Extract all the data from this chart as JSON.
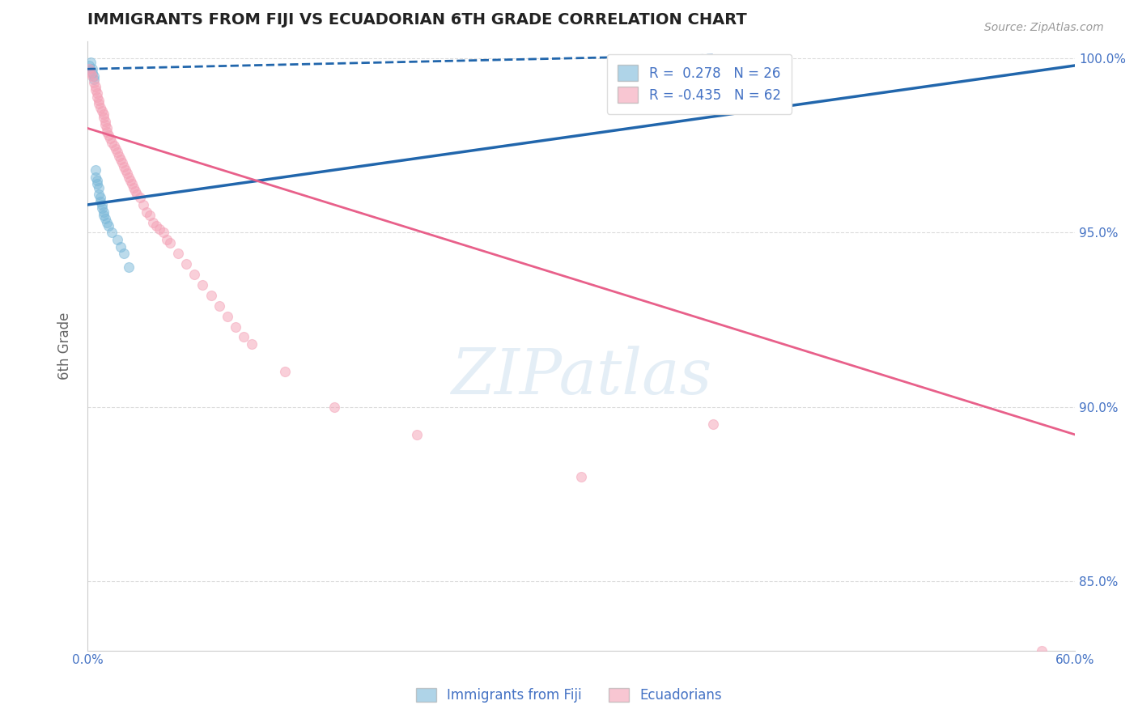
{
  "title": "IMMIGRANTS FROM FIJI VS ECUADORIAN 6TH GRADE CORRELATION CHART",
  "source_text": "Source: ZipAtlas.com",
  "ylabel": "6th Grade",
  "watermark": "ZIPatlas",
  "xlim": [
    0.0,
    0.6
  ],
  "ylim": [
    0.83,
    1.005
  ],
  "xticks": [
    0.0,
    0.1,
    0.2,
    0.3,
    0.4,
    0.5,
    0.6
  ],
  "xticklabels": [
    "0.0%",
    "",
    "",
    "",
    "",
    "",
    "60.0%"
  ],
  "yticks": [
    0.85,
    0.9,
    0.95,
    1.0
  ],
  "yticklabels": [
    "85.0%",
    "90.0%",
    "95.0%",
    "100.0%"
  ],
  "legend_entries": [
    {
      "label": "Immigrants from Fiji",
      "color": "#a8c4e0"
    },
    {
      "label": "Ecuadorians",
      "color": "#f4a0b0"
    }
  ],
  "blue_R": 0.278,
  "blue_N": 26,
  "pink_R": -0.435,
  "pink_N": 62,
  "blue_color": "#7ab8d9",
  "pink_color": "#f4a0b5",
  "blue_line_color": "#2166ac",
  "pink_line_color": "#e8608a",
  "scatter_alpha": 0.5,
  "scatter_size": 75,
  "background_color": "#ffffff",
  "grid_color": "#cccccc",
  "title_color": "#222222",
  "axis_label_color": "#666666",
  "tick_color": "#4472c4",
  "blue_scatter_x": [
    0.001,
    0.002,
    0.003,
    0.003,
    0.004,
    0.004,
    0.005,
    0.005,
    0.006,
    0.006,
    0.007,
    0.007,
    0.008,
    0.008,
    0.009,
    0.009,
    0.01,
    0.01,
    0.011,
    0.012,
    0.013,
    0.015,
    0.018,
    0.02,
    0.022,
    0.025
  ],
  "blue_scatter_y": [
    0.998,
    0.999,
    0.997,
    0.996,
    0.995,
    0.994,
    0.968,
    0.966,
    0.965,
    0.964,
    0.963,
    0.961,
    0.96,
    0.959,
    0.958,
    0.957,
    0.956,
    0.955,
    0.954,
    0.953,
    0.952,
    0.95,
    0.948,
    0.946,
    0.944,
    0.94
  ],
  "pink_scatter_x": [
    0.001,
    0.002,
    0.003,
    0.004,
    0.005,
    0.005,
    0.006,
    0.006,
    0.007,
    0.007,
    0.008,
    0.009,
    0.01,
    0.01,
    0.011,
    0.011,
    0.012,
    0.012,
    0.013,
    0.014,
    0.015,
    0.016,
    0.017,
    0.018,
    0.019,
    0.02,
    0.021,
    0.022,
    0.023,
    0.024,
    0.025,
    0.026,
    0.027,
    0.028,
    0.029,
    0.03,
    0.032,
    0.034,
    0.036,
    0.038,
    0.04,
    0.042,
    0.044,
    0.046,
    0.048,
    0.05,
    0.055,
    0.06,
    0.065,
    0.07,
    0.075,
    0.08,
    0.085,
    0.09,
    0.095,
    0.1,
    0.12,
    0.15,
    0.2,
    0.3,
    0.38,
    0.58
  ],
  "pink_scatter_y": [
    0.997,
    0.996,
    0.995,
    0.993,
    0.992,
    0.991,
    0.99,
    0.989,
    0.988,
    0.987,
    0.986,
    0.985,
    0.984,
    0.983,
    0.982,
    0.981,
    0.98,
    0.979,
    0.978,
    0.977,
    0.976,
    0.975,
    0.974,
    0.973,
    0.972,
    0.971,
    0.97,
    0.969,
    0.968,
    0.967,
    0.966,
    0.965,
    0.964,
    0.963,
    0.962,
    0.961,
    0.96,
    0.958,
    0.956,
    0.955,
    0.953,
    0.952,
    0.951,
    0.95,
    0.948,
    0.947,
    0.944,
    0.941,
    0.938,
    0.935,
    0.932,
    0.929,
    0.926,
    0.923,
    0.92,
    0.918,
    0.91,
    0.9,
    0.892,
    0.88,
    0.895,
    0.83
  ],
  "blue_line_x0": 0.0,
  "blue_line_y0": 0.958,
  "blue_line_x1": 0.6,
  "blue_line_y1": 0.998,
  "blue_line_dashed_x0": 0.0,
  "blue_line_dashed_y0": 0.997,
  "blue_line_dashed_x1": 0.38,
  "blue_line_dashed_y1": 1.001,
  "pink_line_x0": 0.0,
  "pink_line_y0": 0.98,
  "pink_line_x1": 0.6,
  "pink_line_y1": 0.892
}
